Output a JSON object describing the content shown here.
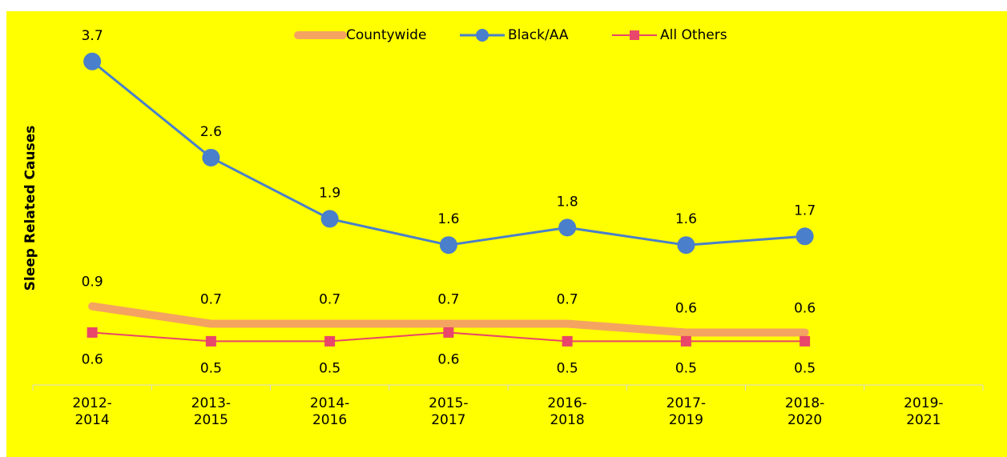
{
  "chart_data": {
    "type": "line",
    "y_axis_label": "Sleep Related Causes",
    "categories": [
      "2012-2014",
      "2013-2015",
      "2014-2016",
      "2015-2017",
      "2016-2018",
      "2017-2019",
      "2018-2020",
      "2019-2021"
    ],
    "ylim": [
      0,
      4
    ],
    "series": [
      {
        "name": "Countywide",
        "color": "#f4a460",
        "values": [
          0.9,
          0.7,
          0.7,
          0.7,
          0.7,
          0.6,
          0.6,
          null
        ]
      },
      {
        "name": "Black/AA",
        "color": "#4a7fcb",
        "values": [
          3.7,
          2.6,
          1.9,
          1.6,
          1.8,
          1.6,
          1.7,
          null
        ]
      },
      {
        "name": "All Others",
        "color": "#e8466a",
        "values": [
          0.6,
          0.5,
          0.5,
          0.6,
          0.5,
          0.5,
          0.5,
          null
        ]
      }
    ],
    "legend": "top"
  }
}
